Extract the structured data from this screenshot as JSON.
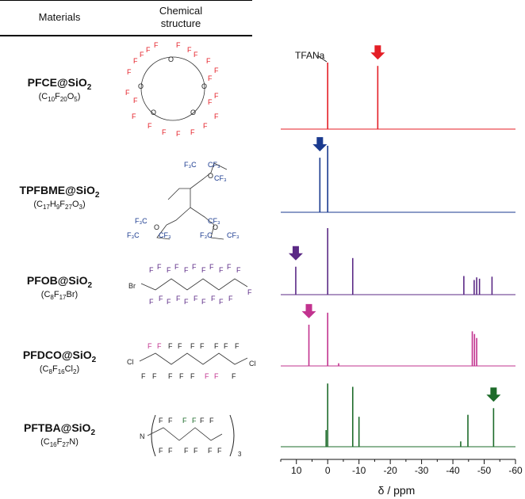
{
  "table": {
    "header_materials": "Materials",
    "header_structure_line1": "Chemical",
    "header_structure_line2": "structure"
  },
  "materials": [
    {
      "label": "PFCE@SiO",
      "label_sub": "2",
      "formula_parts": [
        [
          "C",
          ""
        ],
        [
          "10",
          "s"
        ],
        [
          "F",
          ""
        ],
        [
          "20",
          "s"
        ],
        [
          "O",
          ""
        ],
        [
          "5",
          "s"
        ]
      ],
      "color": "#e41e26"
    },
    {
      "label": "TPFBME@SiO",
      "label_sub": "2",
      "formula_parts": [
        [
          "C",
          ""
        ],
        [
          "17",
          "s"
        ],
        [
          "H",
          ""
        ],
        [
          "9",
          "s"
        ],
        [
          "F",
          ""
        ],
        [
          "27",
          "s"
        ],
        [
          "O",
          ""
        ],
        [
          "3",
          "s"
        ]
      ],
      "color": "#1a3a8f"
    },
    {
      "label": "PFOB@SiO",
      "label_sub": "2",
      "formula_parts": [
        [
          "C",
          ""
        ],
        [
          "8",
          "s"
        ],
        [
          "F",
          ""
        ],
        [
          "17",
          "s"
        ],
        [
          "Br",
          ""
        ]
      ],
      "color": "#5b2a86"
    },
    {
      "label": "PFDCO@SiO",
      "label_sub": "2",
      "formula_parts": [
        [
          "C",
          ""
        ],
        [
          "8",
          "s"
        ],
        [
          "F",
          ""
        ],
        [
          "16",
          "s"
        ],
        [
          "Cl",
          ""
        ],
        [
          "2",
          "s"
        ]
      ],
      "color": "#c2338f"
    },
    {
      "label": "PFTBA@SiO",
      "label_sub": "2",
      "formula_parts": [
        [
          "C",
          ""
        ],
        [
          "16",
          "s"
        ],
        [
          "F",
          ""
        ],
        [
          "27",
          "s"
        ],
        [
          "N",
          ""
        ]
      ],
      "color": "#1d6b2a"
    }
  ],
  "chart_data": {
    "type": "line",
    "xlabel": "δ / ppm",
    "xlim": [
      15,
      -60
    ],
    "ticks": [
      10,
      0,
      -10,
      -20,
      -30,
      -40,
      -50,
      -60
    ],
    "tick_labels": [
      "10",
      "0",
      "-10",
      "-20",
      "-30",
      "-40",
      "-50",
      "-60"
    ],
    "reference_label": "TFANa",
    "series": [
      {
        "color": "#e41e26",
        "peaks": [
          [
            0,
            1.0
          ],
          [
            -16,
            0.95
          ]
        ],
        "arrow_ppm": -16
      },
      {
        "color": "#1a3a8f",
        "peaks": [
          [
            2.5,
            0.82
          ],
          [
            0,
            1.0
          ]
        ],
        "arrow_ppm": 2.5
      },
      {
        "color": "#5b2a86",
        "peaks": [
          [
            10.2,
            0.42
          ],
          [
            0,
            1.0
          ],
          [
            -8,
            0.55
          ],
          [
            -43.5,
            0.28
          ],
          [
            -46.8,
            0.22
          ],
          [
            -47.6,
            0.26
          ],
          [
            -48.5,
            0.24
          ],
          [
            -52.5,
            0.27
          ]
        ],
        "arrow_ppm": 10.2
      },
      {
        "color": "#c2338f",
        "peaks": [
          [
            6,
            0.62
          ],
          [
            0,
            0.8
          ],
          [
            -3.5,
            0.04
          ],
          [
            -46.2,
            0.52
          ],
          [
            -46.9,
            0.48
          ],
          [
            -47.6,
            0.42
          ]
        ],
        "arrow_ppm": 6
      },
      {
        "color": "#1d6b2a",
        "peaks": [
          [
            0.5,
            0.25
          ],
          [
            0,
            0.95
          ],
          [
            -8,
            0.9
          ],
          [
            -10,
            0.45
          ],
          [
            -42.5,
            0.08
          ],
          [
            -44.8,
            0.48
          ],
          [
            -53,
            0.58
          ]
        ],
        "arrow_ppm": -53
      }
    ]
  }
}
